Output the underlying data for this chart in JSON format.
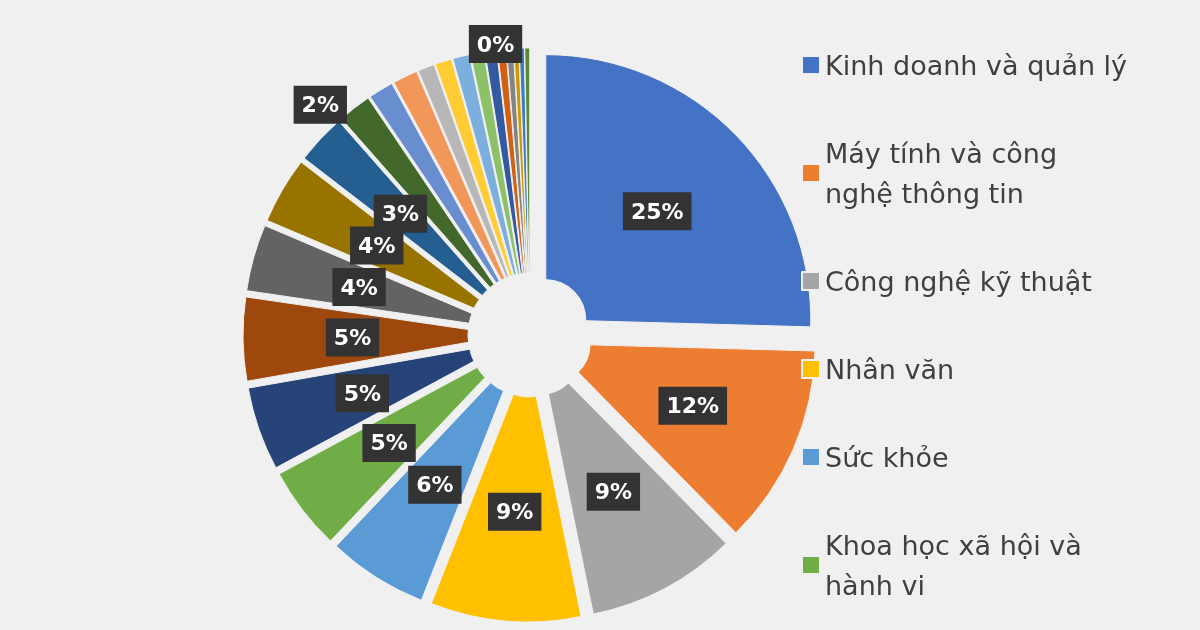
{
  "chart_data": {
    "type": "donut",
    "categories": [
      "Kinh doanh và quản lý",
      "Máy tính và công nghệ thông tin",
      "Công nghệ kỹ thuật",
      "Nhân văn",
      "Sức khỏe",
      "Khoa học xã hội và hành vi",
      null,
      null,
      null,
      null,
      null,
      null,
      null,
      null,
      null,
      null,
      null,
      null,
      null,
      null,
      null,
      null,
      null,
      null
    ],
    "values": [
      25,
      12,
      9,
      9,
      6,
      5,
      5,
      5,
      4,
      4,
      3,
      2,
      1.5,
      1.5,
      1,
      1,
      1,
      0.8,
      0.7,
      0.5,
      0.4,
      0.3,
      0.3,
      0.3
    ],
    "value_labels": [
      "25%",
      "12%",
      "9%",
      "9%",
      "6%",
      "5%",
      "5%",
      "5%",
      "4%",
      "4%",
      "3%",
      "2%",
      null,
      null,
      null,
      null,
      null,
      null,
      null,
      null,
      null,
      null,
      null,
      "0%"
    ],
    "colors": [
      "#4472c4",
      "#ed7d31",
      "#a5a5a5",
      "#ffc000",
      "#5b9bd5",
      "#70ad47",
      "#264478",
      "#9e480e",
      "#636363",
      "#997300",
      "#255e91",
      "#43682b",
      "#698ed0",
      "#f1975a",
      "#b7b7b7",
      "#ffcd33",
      "#7cafdd",
      "#8cc168",
      "#335aa1",
      "#d26012",
      "#848484",
      "#cc9a00",
      "#3c7dc4",
      "#5a8a39"
    ],
    "legend": "right"
  }
}
